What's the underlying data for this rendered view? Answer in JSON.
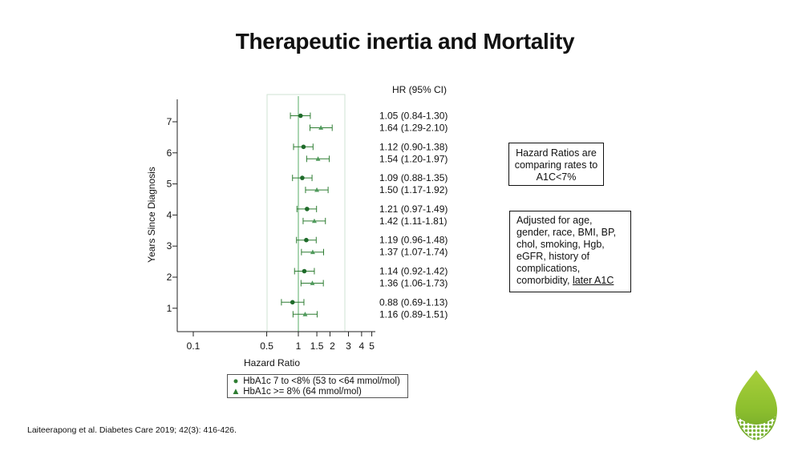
{
  "title": "Therapeutic inertia and Mortality",
  "chart_data": {
    "type": "forest",
    "xlabel": "Hazard Ratio",
    "ylabel": "Years Since Diagnosis",
    "x_scale": "log",
    "x_ticks": [
      "0.1",
      "0.5",
      "1",
      "1.5",
      "2",
      "3",
      "4",
      "5"
    ],
    "x_tick_values": [
      0.1,
      0.5,
      1,
      1.5,
      2,
      3,
      4,
      5
    ],
    "reference_line": 1,
    "ci_header": "HR (95% CI)",
    "categories": [
      "7",
      "6",
      "5",
      "4",
      "3",
      "2",
      "1"
    ],
    "series": [
      {
        "name": "HbA1c 7 to <8% (53 to <64 mmol/mol)",
        "marker": "circle",
        "hr": [
          1.05,
          1.12,
          1.09,
          1.21,
          1.19,
          1.14,
          0.88
        ],
        "lower": [
          0.84,
          0.9,
          0.88,
          0.97,
          0.96,
          0.92,
          0.69
        ],
        "upper": [
          1.3,
          1.38,
          1.35,
          1.49,
          1.48,
          1.42,
          1.13
        ],
        "labels": [
          "1.05 (0.84-1.30)",
          "1.12 (0.90-1.38)",
          "1.09 (0.88-1.35)",
          "1.21 (0.97-1.49)",
          "1.19 (0.96-1.48)",
          "1.14 (0.92-1.42)",
          "0.88 (0.69-1.13)"
        ]
      },
      {
        "name": "HbA1c >= 8% (64 mmol/mol)",
        "marker": "triangle",
        "hr": [
          1.64,
          1.54,
          1.5,
          1.42,
          1.37,
          1.36,
          1.16
        ],
        "lower": [
          1.29,
          1.2,
          1.17,
          1.11,
          1.07,
          1.06,
          0.89
        ],
        "upper": [
          2.1,
          1.97,
          1.92,
          1.81,
          1.74,
          1.73,
          1.51
        ],
        "labels": [
          "1.64 (1.29-2.10)",
          "1.54 (1.20-1.97)",
          "1.50 (1.17-1.92)",
          "1.42 (1.11-1.81)",
          "1.37 (1.07-1.74)",
          "1.36 (1.06-1.73)",
          "1.16 (0.89-1.51)"
        ]
      }
    ],
    "colors": {
      "marker": "#2e7d32",
      "reference": "#8fc99a",
      "band": "#cfe3d3"
    }
  },
  "notes": {
    "box1": "Hazard Ratios are comparing rates to A1C<7%",
    "box2_main": "Adjusted for age, gender, race, BMI, BP, chol, smoking, Hgb, eGFR, history of complications, comorbidity,",
    "box2_underlined": "later A1C"
  },
  "citation": "Laiteerapong et al. Diabetes Care 2019; 42(3): 416-426.",
  "logo": "green-leaf-logo"
}
